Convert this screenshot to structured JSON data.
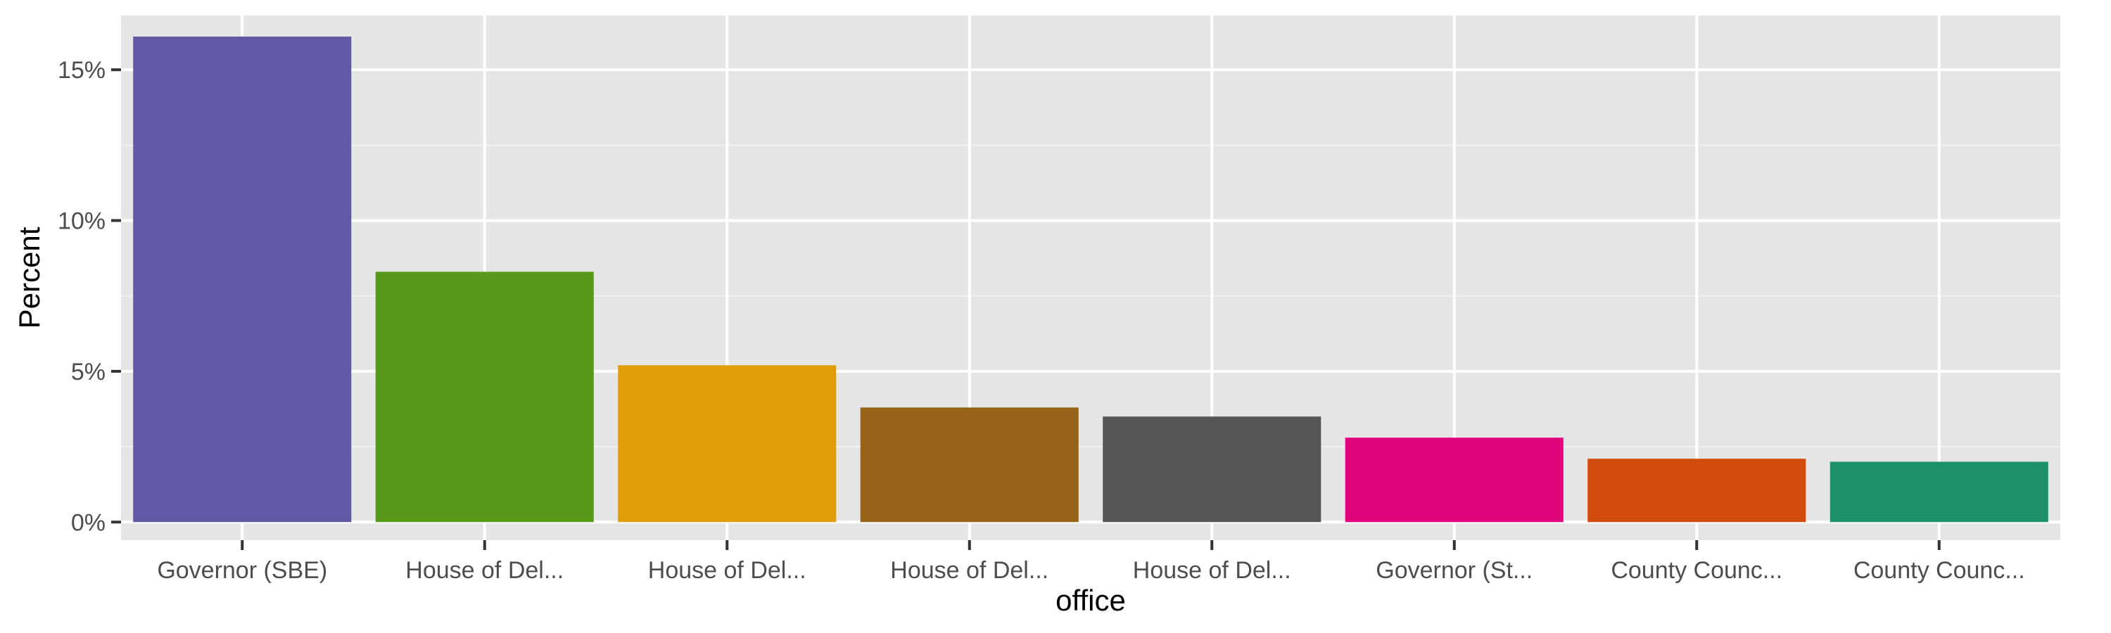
{
  "chart_data": {
    "type": "bar",
    "xlabel": "office",
    "ylabel": "Percent",
    "categories": [
      "Governor (SBE)",
      "House of Del...",
      "House of Del...",
      "House of Del...",
      "House of Del...",
      "Governor (St...",
      "County Counc...",
      "County Counc..."
    ],
    "values": [
      16.1,
      8.3,
      5.2,
      3.8,
      3.5,
      2.8,
      2.1,
      2.0
    ],
    "colors": [
      "#6159A4",
      "#58991A",
      "#DF9D08",
      "#956419",
      "#555555",
      "#DF047C",
      "#D14C0C",
      "#1C9068"
    ],
    "ylim": [
      -0.6,
      16.8
    ],
    "yticks": [
      0,
      5,
      10,
      15
    ],
    "ytick_labels": [
      "0%",
      "5%",
      "10%",
      "15%"
    ],
    "panel_background": "#E5E5E5",
    "grid": true,
    "legend": "none"
  }
}
